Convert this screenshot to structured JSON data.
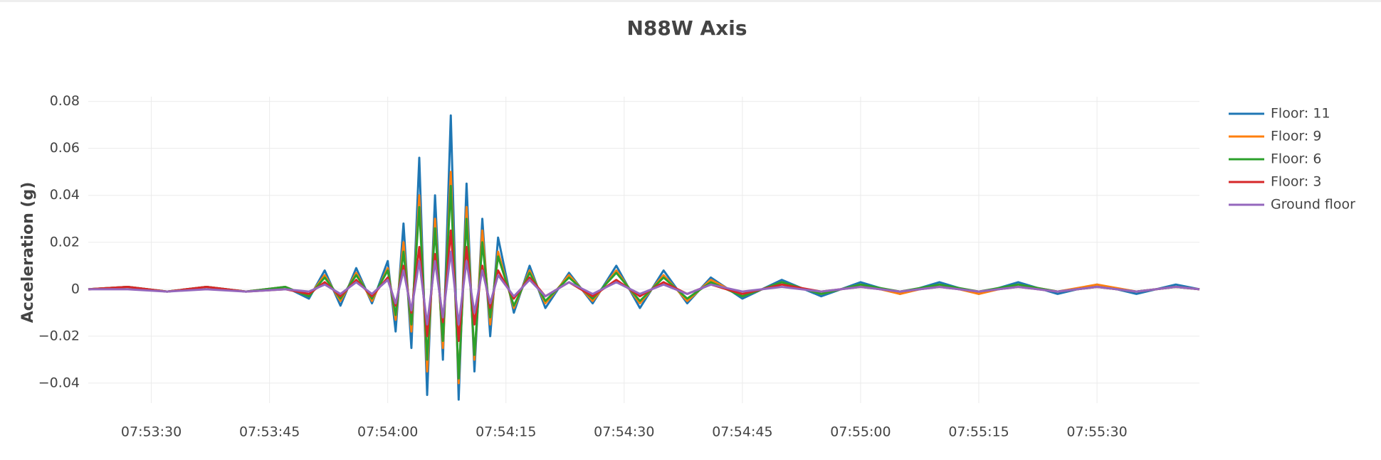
{
  "chart_data": {
    "type": "line",
    "title": "N88W Axis",
    "y_label": "Acceleration (g)",
    "x": [
      "07:53:22",
      "07:53:27",
      "07:53:32",
      "07:53:37",
      "07:53:42",
      "07:53:47",
      "07:53:50",
      "07:53:52",
      "07:53:54",
      "07:53:56",
      "07:53:58",
      "07:54:00",
      "07:54:01",
      "07:54:02",
      "07:54:03",
      "07:54:04",
      "07:54:05",
      "07:54:06",
      "07:54:07",
      "07:54:08",
      "07:54:09",
      "07:54:10",
      "07:54:11",
      "07:54:12",
      "07:54:13",
      "07:54:14",
      "07:54:16",
      "07:54:18",
      "07:54:20",
      "07:54:23",
      "07:54:26",
      "07:54:29",
      "07:54:32",
      "07:54:35",
      "07:54:38",
      "07:54:41",
      "07:54:45",
      "07:54:50",
      "07:54:55",
      "07:55:00",
      "07:55:05",
      "07:55:10",
      "07:55:15",
      "07:55:20",
      "07:55:25",
      "07:55:30",
      "07:55:35",
      "07:55:40",
      "07:55:43"
    ],
    "series": [
      {
        "name": "Floor: 11",
        "color": "#1f77b4",
        "values": [
          0,
          0.001,
          -0.001,
          0.001,
          -0.001,
          0.001,
          -0.004,
          0.008,
          -0.007,
          0.009,
          -0.006,
          0.012,
          -0.018,
          0.028,
          -0.025,
          0.056,
          -0.045,
          0.04,
          -0.03,
          0.074,
          -0.047,
          0.045,
          -0.035,
          0.03,
          -0.02,
          0.022,
          -0.01,
          0.01,
          -0.008,
          0.007,
          -0.006,
          0.01,
          -0.008,
          0.008,
          -0.006,
          0.005,
          -0.004,
          0.004,
          -0.003,
          0.003,
          -0.002,
          0.003,
          -0.002,
          0.003,
          -0.002,
          0.002,
          -0.002,
          0.002,
          0
        ]
      },
      {
        "name": "Floor: 9",
        "color": "#ff7f0e",
        "values": [
          0,
          0.001,
          -0.001,
          0.001,
          -0.001,
          0.001,
          -0.003,
          0.006,
          -0.005,
          0.007,
          -0.005,
          0.009,
          -0.013,
          0.02,
          -0.018,
          0.04,
          -0.035,
          0.03,
          -0.025,
          0.05,
          -0.04,
          0.035,
          -0.03,
          0.025,
          -0.015,
          0.016,
          -0.008,
          0.008,
          -0.006,
          0.006,
          -0.005,
          0.008,
          -0.006,
          0.006,
          -0.005,
          0.004,
          -0.003,
          0.003,
          -0.002,
          0.002,
          -0.002,
          0.002,
          -0.002,
          0.002,
          -0.001,
          0.002,
          -0.001,
          0.001,
          0
        ]
      },
      {
        "name": "Floor: 6",
        "color": "#2ca02c",
        "values": [
          0,
          0.001,
          -0.001,
          0.001,
          -0.001,
          0.001,
          -0.003,
          0.005,
          -0.004,
          0.006,
          -0.004,
          0.008,
          -0.011,
          0.016,
          -0.015,
          0.035,
          -0.03,
          0.026,
          -0.022,
          0.044,
          -0.038,
          0.03,
          -0.028,
          0.02,
          -0.012,
          0.014,
          -0.007,
          0.007,
          -0.005,
          0.005,
          -0.004,
          0.007,
          -0.005,
          0.005,
          -0.004,
          0.003,
          -0.003,
          0.003,
          -0.002,
          0.002,
          -0.001,
          0.002,
          -0.001,
          0.002,
          -0.001,
          0.001,
          -0.001,
          0.001,
          0
        ]
      },
      {
        "name": "Floor: 3",
        "color": "#d62728",
        "values": [
          0,
          0.001,
          -0.001,
          0.001,
          -0.001,
          0,
          -0.002,
          0.003,
          -0.003,
          0.004,
          -0.003,
          0.005,
          -0.007,
          0.01,
          -0.01,
          0.018,
          -0.02,
          0.015,
          -0.014,
          0.025,
          -0.022,
          0.018,
          -0.015,
          0.01,
          -0.008,
          0.008,
          -0.004,
          0.005,
          -0.003,
          0.003,
          -0.003,
          0.004,
          -0.003,
          0.003,
          -0.002,
          0.002,
          -0.002,
          0.002,
          -0.001,
          0.001,
          -0.001,
          0.001,
          -0.001,
          0.001,
          -0.001,
          0.001,
          -0.001,
          0.001,
          0
        ]
      },
      {
        "name": "Ground floor",
        "color": "#9467bd",
        "values": [
          0,
          0,
          -0.001,
          0,
          -0.001,
          0,
          -0.001,
          0.002,
          -0.002,
          0.003,
          -0.002,
          0.004,
          -0.006,
          0.008,
          -0.009,
          0.012,
          -0.015,
          0.012,
          -0.012,
          0.016,
          -0.015,
          0.012,
          -0.01,
          0.008,
          -0.006,
          0.006,
          -0.003,
          0.004,
          -0.003,
          0.003,
          -0.002,
          0.003,
          -0.002,
          0.002,
          -0.002,
          0.002,
          -0.001,
          0.001,
          -0.001,
          0.001,
          -0.001,
          0.001,
          -0.001,
          0.001,
          -0.001,
          0.001,
          -0.001,
          0.001,
          0
        ]
      }
    ],
    "xlim": [
      "07:53:22",
      "07:55:43"
    ],
    "xticks": [
      "07:53:30",
      "07:53:45",
      "07:54:00",
      "07:54:15",
      "07:54:30",
      "07:54:45",
      "07:55:00",
      "07:55:15",
      "07:55:30"
    ],
    "ylim": [
      -0.0485,
      0.082
    ],
    "yticks": [
      {
        "value": -0.04,
        "label": "−0.04"
      },
      {
        "value": -0.02,
        "label": "−0.02"
      },
      0,
      0.02,
      0.04,
      0.06,
      0.08
    ],
    "grid": true,
    "legend": "right"
  }
}
